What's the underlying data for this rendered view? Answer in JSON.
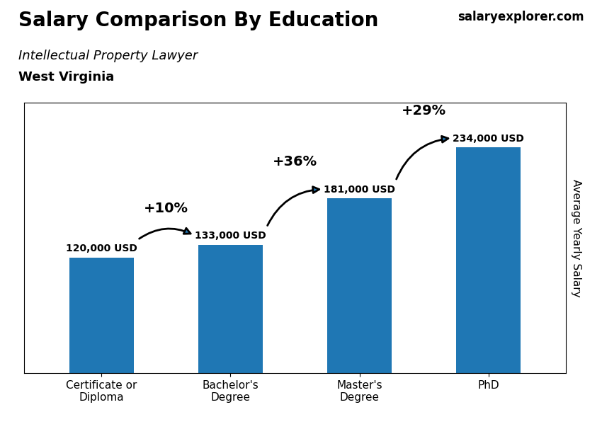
{
  "chart_data": {
    "type": "bar",
    "title": "Salary Comparison By Education",
    "subtitle": "Intellectual Property Lawyer",
    "location": "West Virginia",
    "source": "salaryexplorer.com",
    "ylabel": "Average Yearly Salary",
    "categories": [
      "Certificate or\nDiploma",
      "Bachelor's\nDegree",
      "Master's\nDegree",
      "PhD"
    ],
    "values": [
      120000,
      133000,
      181000,
      234000
    ],
    "value_labels": [
      "120,000 USD",
      "133,000 USD",
      "181,000 USD",
      "234,000 USD"
    ],
    "data_labels": true,
    "annotations": [
      "+10%",
      "+36%",
      "+29%"
    ],
    "ylim": [
      0,
      280000
    ],
    "yticks": [],
    "tick_labels": "x"
  }
}
